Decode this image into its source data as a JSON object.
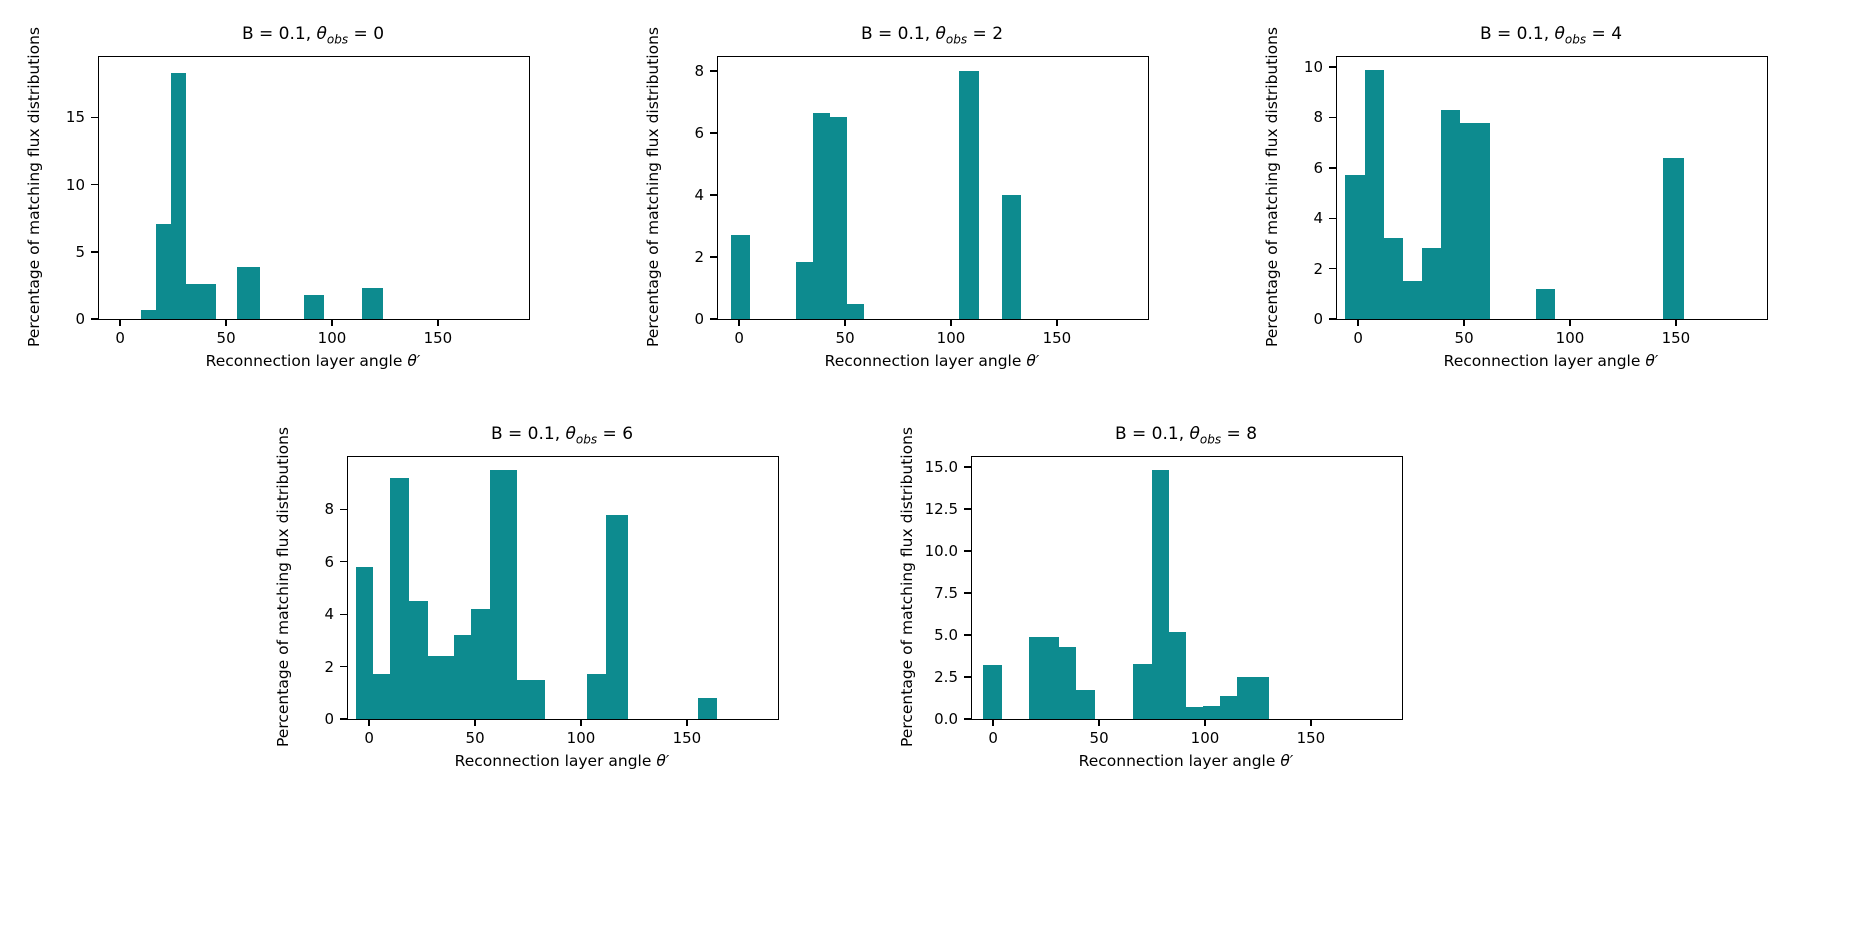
{
  "figure": {
    "background": "#ffffff"
  },
  "style": {
    "bar_color": "#0d8b8f",
    "axis_color": "#000000",
    "text_color": "#000000"
  },
  "title_parts": {
    "prefix": "B = 0.1, ",
    "symbol": "θ",
    "subscript": "obs",
    "equals": " = "
  },
  "axis": {
    "ylabel": "Percentage of matching flux distributions",
    "xlabel_prefix": "Reconnection layer angle ",
    "xlabel_symbol": "θ′"
  },
  "chart_data": [
    {
      "type": "bar",
      "title": "B = 0.1, θ_obs = 0",
      "theta_obs": "0",
      "xlim": [
        -10,
        193
      ],
      "ylim": [
        0,
        19.5
      ],
      "xticks": [
        0,
        50,
        100,
        150
      ],
      "xtick_labels": [
        "0",
        "50",
        "100",
        "150"
      ],
      "yticks": [
        0,
        5,
        10,
        15
      ],
      "ytick_labels": [
        "0",
        "5",
        "10",
        "15"
      ],
      "bins": [
        [
          10,
          17,
          0.7
        ],
        [
          17,
          24,
          7.1
        ],
        [
          24,
          31,
          18.3
        ],
        [
          31,
          45,
          2.6
        ],
        [
          55,
          66,
          3.9
        ],
        [
          87,
          96,
          1.8
        ],
        [
          114,
          124,
          2.3
        ]
      ]
    },
    {
      "type": "bar",
      "title": "B = 0.1, θ_obs = 2",
      "theta_obs": "2",
      "xlim": [
        -10,
        193
      ],
      "ylim": [
        0,
        8.45
      ],
      "xticks": [
        0,
        50,
        100,
        150
      ],
      "xtick_labels": [
        "0",
        "50",
        "100",
        "150"
      ],
      "yticks": [
        0,
        2,
        4,
        6,
        8
      ],
      "ytick_labels": [
        "0",
        "2",
        "4",
        "6",
        "8"
      ],
      "bins": [
        [
          -4,
          5,
          2.7
        ],
        [
          27,
          35,
          1.85
        ],
        [
          35,
          43,
          6.65
        ],
        [
          43,
          51,
          6.5
        ],
        [
          51,
          59,
          0.5
        ],
        [
          104,
          113,
          8.0
        ],
        [
          124,
          133,
          4.0
        ]
      ]
    },
    {
      "type": "bar",
      "title": "B = 0.1, θ_obs = 4",
      "theta_obs": "4",
      "xlim": [
        -10,
        193
      ],
      "ylim": [
        0,
        10.4
      ],
      "xticks": [
        0,
        50,
        100,
        150
      ],
      "xtick_labels": [
        "0",
        "50",
        "100",
        "150"
      ],
      "yticks": [
        0,
        2,
        4,
        6,
        8,
        10
      ],
      "ytick_labels": [
        "0",
        "2",
        "4",
        "6",
        "8",
        "10"
      ],
      "bins": [
        [
          -6,
          3,
          5.7
        ],
        [
          3,
          12,
          9.9
        ],
        [
          12,
          21,
          3.2
        ],
        [
          21,
          30,
          1.5
        ],
        [
          30,
          39,
          2.8
        ],
        [
          39,
          48,
          8.3
        ],
        [
          48,
          62,
          7.8
        ],
        [
          84,
          93,
          1.2
        ],
        [
          144,
          154,
          6.4
        ]
      ]
    },
    {
      "type": "bar",
      "title": "B = 0.1, θ_obs = 6",
      "theta_obs": "6",
      "xlim": [
        -10,
        193
      ],
      "ylim": [
        0,
        10.0
      ],
      "xticks": [
        0,
        50,
        100,
        150
      ],
      "xtick_labels": [
        "0",
        "50",
        "100",
        "150"
      ],
      "yticks": [
        0,
        2,
        4,
        6,
        8
      ],
      "ytick_labels": [
        "0",
        "2",
        "4",
        "6",
        "8"
      ],
      "bins": [
        [
          -6,
          2,
          5.8
        ],
        [
          2,
          10,
          1.7
        ],
        [
          10,
          19,
          9.2
        ],
        [
          19,
          28,
          4.5
        ],
        [
          28,
          40,
          2.4
        ],
        [
          40,
          48,
          3.2
        ],
        [
          48,
          57,
          4.2
        ],
        [
          57,
          70,
          9.5
        ],
        [
          70,
          83,
          1.5
        ],
        [
          103,
          112,
          1.7
        ],
        [
          112,
          122,
          7.8
        ],
        [
          155,
          164,
          0.8
        ]
      ]
    },
    {
      "type": "bar",
      "title": "B = 0.1, θ_obs = 8",
      "theta_obs": "8",
      "xlim": [
        -10,
        193
      ],
      "ylim": [
        0,
        15.6
      ],
      "xticks": [
        0,
        50,
        100,
        150
      ],
      "xtick_labels": [
        "0",
        "50",
        "100",
        "150"
      ],
      "yticks": [
        0,
        2.5,
        5,
        7.5,
        10,
        12.5,
        15
      ],
      "ytick_labels": [
        "0.0",
        "2.5",
        "5.0",
        "7.5",
        "10.0",
        "12.5",
        "15.0"
      ],
      "bins": [
        [
          -5,
          4,
          3.2
        ],
        [
          17,
          31,
          4.9
        ],
        [
          31,
          39,
          4.3
        ],
        [
          39,
          48,
          1.7
        ],
        [
          66,
          75,
          3.3
        ],
        [
          75,
          83,
          14.8
        ],
        [
          83,
          91,
          5.2
        ],
        [
          91,
          99,
          0.7
        ],
        [
          99,
          107,
          0.8
        ],
        [
          107,
          115,
          1.4
        ],
        [
          115,
          130,
          2.5
        ]
      ]
    }
  ]
}
